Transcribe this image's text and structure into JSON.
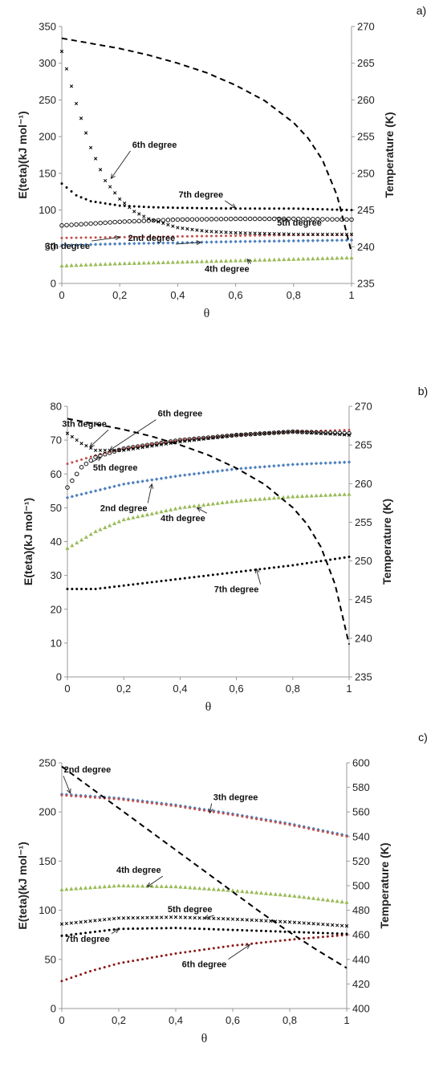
{
  "chart_data": [
    {
      "type": "scatter",
      "panel_label": "a)",
      "xlabel": "θ",
      "ylabel": "E(teta)(kJ mol⁻¹)",
      "y2label": "Temperature (K)",
      "xlim": [
        0,
        1
      ],
      "ylim": [
        0,
        350
      ],
      "y2lim": [
        235,
        270
      ],
      "xticks": [
        0,
        0.2,
        0.4,
        0.6,
        0.8,
        1
      ],
      "xtick_labels": [
        "0",
        "0,2",
        "0,4",
        "0,6",
        "0,8",
        "1"
      ],
      "yticks": [
        0,
        50,
        100,
        150,
        200,
        250,
        300,
        350
      ],
      "y2ticks": [
        235,
        240,
        245,
        250,
        255,
        260,
        265,
        270
      ],
      "temperature_curve": {
        "x": [
          0,
          0.1,
          0.2,
          0.3,
          0.4,
          0.5,
          0.6,
          0.7,
          0.8,
          0.85,
          0.9,
          0.95,
          1
        ],
        "y": [
          268.4,
          267.7,
          267.0,
          266.1,
          265.0,
          263.7,
          262.0,
          259.9,
          256.9,
          254.8,
          251.8,
          247.0,
          239.2
        ]
      },
      "series": [
        {
          "name": "2nd degree",
          "color": "#4f81bd",
          "marker": "diamond",
          "x": [
            0,
            0.2,
            0.4,
            0.6,
            0.8,
            1
          ],
          "y": [
            52,
            54,
            55.5,
            57,
            58,
            59
          ]
        },
        {
          "name": "3th degree",
          "color": "#c0504d",
          "marker": "dot",
          "x": [
            0,
            0.2,
            0.4,
            0.6,
            0.8,
            1
          ],
          "y": [
            62,
            63,
            64,
            65,
            66,
            66
          ]
        },
        {
          "name": "4th degree",
          "color": "#9bbb59",
          "marker": "triangle",
          "x": [
            0,
            0.2,
            0.4,
            0.6,
            0.8,
            1
          ],
          "y": [
            24,
            27,
            29,
            31,
            33,
            35
          ]
        },
        {
          "name": "5th degree",
          "color": "#000000",
          "marker": "circle",
          "x": [
            0,
            0.2,
            0.4,
            0.6,
            0.8,
            1
          ],
          "y": [
            79,
            84,
            87,
            88,
            88,
            87
          ]
        },
        {
          "name": "6th degree",
          "color": "#000000",
          "marker": "x",
          "x": [
            0,
            0.05,
            0.1,
            0.15,
            0.2,
            0.25,
            0.3,
            0.4,
            0.5,
            0.6,
            0.8,
            1
          ],
          "y": [
            316,
            245,
            185,
            140,
            115,
            98,
            88,
            76,
            71,
            69,
            67,
            67
          ]
        },
        {
          "name": "7th degree",
          "color": "#000000",
          "marker": "dot",
          "x": [
            0,
            0.05,
            0.1,
            0.2,
            0.3,
            0.4,
            0.6,
            0.8,
            1
          ],
          "y": [
            136,
            120,
            112,
            106,
            104,
            103,
            102,
            102,
            100
          ]
        }
      ],
      "annotations": [
        {
          "text": "6th degree",
          "x": 0.32,
          "y": 185,
          "ax": 0.17,
          "ay": 143
        },
        {
          "text": "7th degree",
          "x": 0.48,
          "y": 117,
          "ax": 0.6,
          "ay": 103
        },
        {
          "text": "5th degree",
          "x": 0.82,
          "y": 79,
          "ax": 0.78,
          "ay": 87
        },
        {
          "text": "3th degree",
          "x": 0.02,
          "y": 47,
          "ax": 0.2,
          "ay": 63
        },
        {
          "text": "2nd degree",
          "x": 0.31,
          "y": 58,
          "ax": 0.48,
          "ay": 56
        },
        {
          "text": "4th degree",
          "x": 0.57,
          "y": 16,
          "ax": 0.64,
          "ay": 33
        }
      ]
    },
    {
      "type": "scatter",
      "panel_label": "b)",
      "xlabel": "θ",
      "ylabel": "E(teta)(kJ mol⁻¹)",
      "y2label": "Temperature (K)",
      "xlim": [
        0,
        1
      ],
      "ylim": [
        0,
        80
      ],
      "y2lim": [
        235,
        270
      ],
      "xticks": [
        0,
        0.2,
        0.4,
        0.6,
        0.8,
        1
      ],
      "xtick_labels": [
        "0",
        "0,2",
        "0,4",
        "0,6",
        "0,8",
        "1"
      ],
      "yticks": [
        0,
        10,
        20,
        30,
        40,
        50,
        60,
        70,
        80
      ],
      "y2ticks": [
        235,
        240,
        245,
        250,
        255,
        260,
        265,
        270
      ],
      "temperature_curve": {
        "x": [
          0,
          0.1,
          0.2,
          0.3,
          0.4,
          0.5,
          0.6,
          0.7,
          0.8,
          0.85,
          0.9,
          0.95,
          1
        ],
        "y": [
          268.4,
          267.7,
          267.0,
          266.1,
          265.0,
          263.7,
          262.0,
          259.9,
          256.9,
          254.8,
          251.8,
          247.0,
          239.2
        ]
      },
      "series": [
        {
          "name": "2nd degree",
          "color": "#4f81bd",
          "marker": "diamond",
          "x": [
            0,
            0.2,
            0.4,
            0.6,
            0.8,
            1
          ],
          "y": [
            53,
            57,
            59.5,
            61.5,
            62.8,
            63.5
          ]
        },
        {
          "name": "3th degree",
          "color": "#c0504d",
          "marker": "dot",
          "x": [
            0,
            0.1,
            0.2,
            0.4,
            0.6,
            0.8,
            1
          ],
          "y": [
            63,
            65.5,
            67.5,
            70,
            71.5,
            72.5,
            73
          ]
        },
        {
          "name": "4th degree",
          "color": "#9bbb59",
          "marker": "triangle",
          "x": [
            0,
            0.1,
            0.2,
            0.4,
            0.6,
            0.8,
            1
          ],
          "y": [
            38,
            43,
            46.5,
            50,
            52,
            53.3,
            54
          ]
        },
        {
          "name": "5th degree",
          "color": "#000000",
          "marker": "circle",
          "x": [
            0,
            0.05,
            0.1,
            0.2,
            0.4,
            0.6,
            0.8,
            1
          ],
          "y": [
            56,
            62,
            65,
            67.5,
            70,
            71.5,
            72.5,
            72
          ]
        },
        {
          "name": "6th degree",
          "color": "#000000",
          "marker": "x",
          "x": [
            0,
            0.05,
            0.1,
            0.2,
            0.4,
            0.6,
            0.8,
            1
          ],
          "y": [
            72,
            69,
            67,
            67,
            69.5,
            71.5,
            72.5,
            71.5
          ]
        },
        {
          "name": "7th degree",
          "color": "#000000",
          "marker": "dot",
          "x": [
            0,
            0.1,
            0.2,
            0.4,
            0.6,
            0.8,
            1
          ],
          "y": [
            26,
            26,
            27,
            29,
            31,
            33,
            35.5
          ]
        }
      ],
      "annotations": [
        {
          "text": "3th degree",
          "x": 0.06,
          "y": 74,
          "ax": 0.08,
          "ay": 68
        },
        {
          "text": "6th degree",
          "x": 0.4,
          "y": 77,
          "ax": 0.15,
          "ay": 67
        },
        {
          "text": "5th degree",
          "x": 0.17,
          "y": 61,
          "ax": 0.12,
          "ay": 65
        },
        {
          "text": "2nd degree",
          "x": 0.2,
          "y": 49,
          "ax": 0.3,
          "ay": 57
        },
        {
          "text": "4th degree",
          "x": 0.41,
          "y": 46,
          "ax": 0.46,
          "ay": 50
        },
        {
          "text": "7th degree",
          "x": 0.6,
          "y": 25,
          "ax": 0.67,
          "ay": 32
        }
      ]
    },
    {
      "type": "scatter",
      "panel_label": "c)",
      "xlabel": "θ",
      "ylabel": "E(teta)(kJ mol⁻¹)",
      "y2label": "Temperature (K)",
      "xlim": [
        0,
        1
      ],
      "ylim": [
        0,
        250
      ],
      "y2lim": [
        400,
        600
      ],
      "xticks": [
        0,
        0.2,
        0.4,
        0.6,
        0.8,
        1
      ],
      "xtick_labels": [
        "0",
        "0,2",
        "0,4",
        "0,6",
        "0,8",
        "1"
      ],
      "yticks": [
        0,
        50,
        100,
        150,
        200,
        250
      ],
      "y2ticks": [
        400,
        420,
        440,
        460,
        480,
        500,
        520,
        540,
        560,
        580,
        600
      ],
      "temperature_curve": {
        "x": [
          0,
          0.1,
          0.2,
          0.3,
          0.4,
          0.5,
          0.6,
          0.7,
          0.8,
          0.9,
          1
        ],
        "y": [
          597,
          580,
          563,
          546,
          529,
          512,
          495,
          478,
          462,
          447,
          433
        ]
      },
      "series": [
        {
          "name": "2nd degree",
          "color": "#4f81bd",
          "marker": "diamond",
          "x": [
            0,
            0.2,
            0.4,
            0.6,
            0.8,
            1
          ],
          "y": [
            218,
            214,
            207,
            198,
            188,
            176
          ]
        },
        {
          "name": "3th degree",
          "color": "#c0504d",
          "marker": "dot",
          "x": [
            0,
            0.2,
            0.4,
            0.6,
            0.8,
            1
          ],
          "y": [
            217,
            213,
            206,
            197,
            187,
            175
          ]
        },
        {
          "name": "4th degree",
          "color": "#9bbb59",
          "marker": "triangle",
          "x": [
            0,
            0.2,
            0.4,
            0.6,
            0.8,
            1
          ],
          "y": [
            121,
            125,
            124,
            120,
            115,
            108
          ]
        },
        {
          "name": "5th degree",
          "color": "#000000",
          "marker": "x",
          "x": [
            0,
            0.2,
            0.4,
            0.6,
            0.8,
            1
          ],
          "y": [
            86,
            92,
            93,
            91,
            88,
            84
          ]
        },
        {
          "name": "6th degree",
          "color": "#8b1a1a",
          "marker": "dot",
          "x": [
            0,
            0.1,
            0.2,
            0.4,
            0.6,
            0.8,
            1
          ],
          "y": [
            28,
            38,
            46,
            56,
            64,
            70,
            75
          ]
        },
        {
          "name": "7th degree",
          "color": "#000000",
          "marker": "dot",
          "x": [
            0,
            0.2,
            0.4,
            0.6,
            0.8,
            1
          ],
          "y": [
            74,
            81,
            82,
            80,
            78,
            76
          ]
        }
      ],
      "annotations": [
        {
          "text": "2nd degree",
          "x": 0.09,
          "y": 240,
          "ax": 0.03,
          "ay": 219
        },
        {
          "text": "3th degree",
          "x": 0.61,
          "y": 212,
          "ax": 0.52,
          "ay": 199
        },
        {
          "text": "4th degree",
          "x": 0.27,
          "y": 138,
          "ax": 0.3,
          "ay": 124
        },
        {
          "text": "5th degree",
          "x": 0.45,
          "y": 98,
          "ax": 0.5,
          "ay": 92
        },
        {
          "text": "7th degree",
          "x": 0.09,
          "y": 68,
          "ax": 0.2,
          "ay": 81
        },
        {
          "text": "6th degree",
          "x": 0.5,
          "y": 42,
          "ax": 0.66,
          "ay": 65
        }
      ]
    }
  ]
}
